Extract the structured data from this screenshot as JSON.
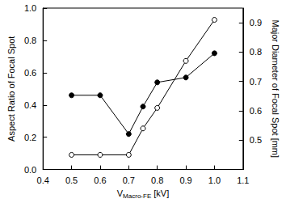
{
  "chart_data": {
    "type": "line",
    "x_label": {
      "text": "V",
      "subscript": "Macro-FE",
      "unit": " [kV]"
    },
    "y_label": "Aspect Ratio of Focal Spot",
    "y2_label": "Major Diameter of Focal Spot [mm]",
    "x": [
      0.5,
      0.6,
      0.7,
      0.75,
      0.8,
      0.9,
      1.0
    ],
    "xlim": [
      0.4,
      1.1
    ],
    "xticks": [
      0.4,
      0.5,
      0.6,
      0.7,
      0.8,
      0.9,
      {
        "value": 1.0,
        "label": "1.0"
      },
      1.1
    ],
    "ylim": [
      0,
      1
    ],
    "yticks": [
      {
        "value": 0,
        "label": "0.0"
      },
      0.2,
      0.4,
      0.6,
      0.8,
      {
        "value": 1,
        "label": "1.0"
      }
    ],
    "y2lim": [
      0.4,
      0.95
    ],
    "y2ticks": [
      0.5,
      0.6,
      0.7,
      0.8,
      0.9
    ],
    "grid": false,
    "series": [
      {
        "name": "Aspect Ratio of Focal Spot",
        "color": "#000000",
        "marker": "filled_circle",
        "line_style": "solid",
        "values": [
          0.46,
          0.46,
          0.22,
          0.39,
          0.54,
          0.57,
          0.72
        ]
      },
      {
        "name": "Major Diameter of Focal Spot [mm]",
        "color": "#000000",
        "marker": "open_circle",
        "line_style": "solid",
        "axis": "y2",
        "values": [
          0.45,
          0.45,
          0.45,
          0.54,
          0.61,
          0.77,
          0.91
        ]
      }
    ]
  }
}
